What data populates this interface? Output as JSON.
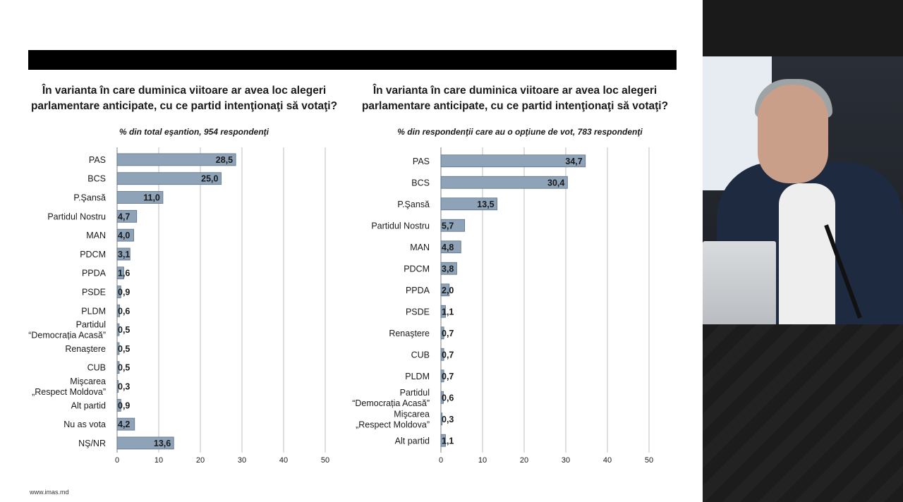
{
  "left": {
    "title": "În varianta în care duminica viitoare ar avea loc alegeri parlamentare anticipate, cu ce partid intenţionaţi să votaţi?",
    "subtitle": "% din total eşantion, 954 respondenţi"
  },
  "right": {
    "title": "În varianta în care duminica viitoare ar avea loc alegeri parlamentare anticipate, cu ce partid intenţionaţi să votaţi?",
    "subtitle": "% din respondenţii care au o opţiune de vot, 783 respondenţi"
  },
  "footer": "www.imas.md",
  "colors": {
    "bar": "#8ea3b8",
    "bar_edge": "#5d7185",
    "grid": "#bfbfbf",
    "topbar": "#000000"
  },
  "chart_data": [
    {
      "type": "bar",
      "orientation": "horizontal",
      "categories": [
        "PAS",
        "BCS",
        "P.Şansă",
        "Partidul Nostru",
        "MAN",
        "PDCM",
        "PPDA",
        "PSDE",
        "PLDM",
        "Partidul\n“Democrația Acasă”",
        "Renaştere",
        "CUB",
        "Mişcarea\n„Respect Moldova”",
        "Alt partid",
        "Nu as vota",
        "NŞ/NR"
      ],
      "values": [
        28.5,
        25.0,
        11.0,
        4.7,
        4.0,
        3.1,
        1.6,
        0.9,
        0.6,
        0.5,
        0.5,
        0.5,
        0.3,
        0.9,
        4.2,
        13.6
      ],
      "value_labels": [
        "28,5",
        "25,0",
        "11,0",
        "4,7",
        "4,0",
        "3,1",
        "1,6",
        "0,9",
        "0,6",
        "0,5",
        "0,5",
        "0,5",
        "0,3",
        "0,9",
        "4,2",
        "13,6"
      ],
      "xlim": [
        0,
        50
      ],
      "xticks": [
        "0",
        "10",
        "20",
        "30",
        "40",
        "50"
      ],
      "grid": true
    },
    {
      "type": "bar",
      "orientation": "horizontal",
      "categories": [
        "PAS",
        "BCS",
        "P.Şansă",
        "Partidul Nostru",
        "MAN",
        "PDCM",
        "PPDA",
        "PSDE",
        "Renaştere",
        "CUB",
        "PLDM",
        "Partidul\n“Democrația Acasă”",
        "Mişcarea\n„Respect Moldova”",
        "Alt partid"
      ],
      "values": [
        34.7,
        30.4,
        13.5,
        5.7,
        4.8,
        3.8,
        2.0,
        1.1,
        0.7,
        0.7,
        0.7,
        0.6,
        0.3,
        1.1
      ],
      "value_labels": [
        "34,7",
        "30,4",
        "13,5",
        "5,7",
        "4,8",
        "3,8",
        "2,0",
        "1,1",
        "0,7",
        "0,7",
        "0,7",
        "0,6",
        "0,3",
        "1,1"
      ],
      "xlim": [
        0,
        50
      ],
      "xticks": [
        "0",
        "10",
        "20",
        "30",
        "40",
        "50"
      ],
      "grid": true
    }
  ]
}
